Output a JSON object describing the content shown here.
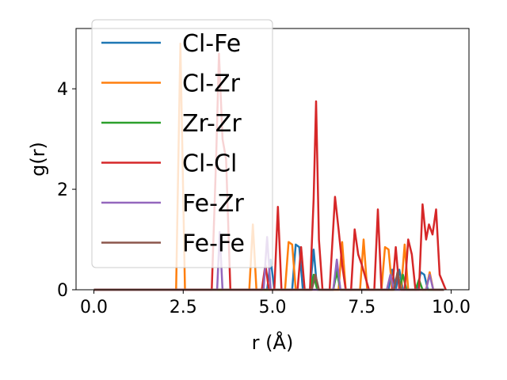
{
  "chart_data": {
    "type": "line",
    "xlabel": "r (Å)",
    "ylabel": "g(r)",
    "xlim": [
      -0.5,
      10.5
    ],
    "ylim": [
      0,
      5.2
    ],
    "xticks": [
      0.0,
      2.5,
      5.0,
      7.5,
      10.0
    ],
    "xtick_labels": [
      "0.0",
      "2.5",
      "5.0",
      "7.5",
      "10.0"
    ],
    "yticks": [
      0,
      2,
      4
    ],
    "ytick_labels": [
      "0",
      "2",
      "4"
    ],
    "grid": false,
    "legend_position": "top-left",
    "series": [
      {
        "name": "Cl-Fe",
        "color": "#1f77b4",
        "points": [
          [
            0,
            0
          ],
          [
            4.85,
            0
          ],
          [
            4.95,
            0.6
          ],
          [
            5.05,
            0
          ],
          [
            5.55,
            0
          ],
          [
            5.65,
            0.9
          ],
          [
            5.75,
            0.85
          ],
          [
            5.85,
            0
          ],
          [
            6.05,
            0
          ],
          [
            6.15,
            0.8
          ],
          [
            6.25,
            0
          ],
          [
            6.7,
            0
          ],
          [
            6.8,
            0.5
          ],
          [
            6.9,
            0
          ],
          [
            8.25,
            0
          ],
          [
            8.35,
            0.4
          ],
          [
            8.45,
            0
          ],
          [
            8.55,
            0.4
          ],
          [
            8.65,
            0
          ],
          [
            9.05,
            0
          ],
          [
            9.15,
            0.35
          ],
          [
            9.25,
            0.3
          ],
          [
            9.35,
            0
          ],
          [
            9.8,
            0
          ]
        ]
      },
      {
        "name": "Cl-Zr",
        "color": "#ff7f0e",
        "points": [
          [
            0,
            0
          ],
          [
            2.3,
            0
          ],
          [
            2.42,
            4.9
          ],
          [
            2.55,
            0
          ],
          [
            4.35,
            0
          ],
          [
            4.45,
            1.3
          ],
          [
            4.55,
            0
          ],
          [
            5.35,
            0
          ],
          [
            5.45,
            0.95
          ],
          [
            5.55,
            0.9
          ],
          [
            5.65,
            0
          ],
          [
            6.85,
            0
          ],
          [
            6.95,
            0.95
          ],
          [
            7.05,
            0
          ],
          [
            7.45,
            0
          ],
          [
            7.55,
            1.0
          ],
          [
            7.65,
            0
          ],
          [
            8.05,
            0
          ],
          [
            8.15,
            0.85
          ],
          [
            8.25,
            0.8
          ],
          [
            8.35,
            0
          ],
          [
            8.6,
            0
          ],
          [
            8.7,
            0.9
          ],
          [
            8.8,
            0
          ],
          [
            9.3,
            0
          ],
          [
            9.4,
            0.35
          ],
          [
            9.5,
            0
          ],
          [
            9.8,
            0
          ]
        ]
      },
      {
        "name": "Zr-Zr",
        "color": "#2ca02c",
        "points": [
          [
            0,
            0
          ],
          [
            6.05,
            0
          ],
          [
            6.15,
            0.3
          ],
          [
            6.25,
            0
          ],
          [
            6.7,
            0
          ],
          [
            6.8,
            0.35
          ],
          [
            6.9,
            0
          ],
          [
            8.55,
            0
          ],
          [
            8.65,
            0.3
          ],
          [
            8.75,
            0
          ],
          [
            9.0,
            0
          ],
          [
            9.1,
            0.2
          ],
          [
            9.2,
            0
          ],
          [
            9.8,
            0
          ]
        ]
      },
      {
        "name": "Cl-Cl",
        "color": "#d62728",
        "points": [
          [
            0,
            0
          ],
          [
            3.3,
            0
          ],
          [
            3.42,
            2.6
          ],
          [
            3.5,
            4.7
          ],
          [
            3.6,
            3.0
          ],
          [
            3.7,
            2.6
          ],
          [
            3.82,
            0
          ],
          [
            4.7,
            0
          ],
          [
            4.8,
            0.5
          ],
          [
            4.9,
            0
          ],
          [
            5.05,
            0
          ],
          [
            5.15,
            1.65
          ],
          [
            5.25,
            0
          ],
          [
            5.7,
            0
          ],
          [
            5.8,
            0.85
          ],
          [
            5.9,
            0
          ],
          [
            6.05,
            0
          ],
          [
            6.15,
            1.8
          ],
          [
            6.22,
            3.75
          ],
          [
            6.3,
            1.0
          ],
          [
            6.4,
            0
          ],
          [
            6.6,
            0
          ],
          [
            6.75,
            1.85
          ],
          [
            6.85,
            1.2
          ],
          [
            6.95,
            0.5
          ],
          [
            7.05,
            0
          ],
          [
            7.2,
            0
          ],
          [
            7.3,
            1.2
          ],
          [
            7.4,
            0.7
          ],
          [
            7.5,
            0.5
          ],
          [
            7.7,
            0
          ],
          [
            7.85,
            0
          ],
          [
            7.95,
            1.6
          ],
          [
            8.05,
            0
          ],
          [
            8.35,
            0
          ],
          [
            8.45,
            0.85
          ],
          [
            8.55,
            0
          ],
          [
            8.7,
            0
          ],
          [
            8.8,
            1.0
          ],
          [
            8.9,
            0.7
          ],
          [
            9.0,
            0
          ],
          [
            9.1,
            0
          ],
          [
            9.2,
            1.7
          ],
          [
            9.3,
            1.0
          ],
          [
            9.38,
            1.3
          ],
          [
            9.48,
            1.1
          ],
          [
            9.58,
            1.6
          ],
          [
            9.68,
            0.3
          ],
          [
            9.85,
            0
          ]
        ]
      },
      {
        "name": "Fe-Zr",
        "color": "#9467bd",
        "points": [
          [
            0,
            0
          ],
          [
            3.45,
            0
          ],
          [
            3.52,
            1.15
          ],
          [
            3.6,
            0
          ],
          [
            4.75,
            0
          ],
          [
            4.85,
            1.05
          ],
          [
            4.95,
            0
          ],
          [
            6.7,
            0
          ],
          [
            6.8,
            0.6
          ],
          [
            6.9,
            0
          ],
          [
            8.2,
            0
          ],
          [
            8.3,
            0.3
          ],
          [
            8.4,
            0
          ],
          [
            9.3,
            0
          ],
          [
            9.4,
            0.3
          ],
          [
            9.5,
            0
          ],
          [
            9.8,
            0
          ]
        ]
      },
      {
        "name": "Fe-Fe",
        "color": "#8c564b",
        "points": [
          [
            0,
            0
          ],
          [
            6.1,
            0
          ],
          [
            6.2,
            0.3
          ],
          [
            6.3,
            0
          ],
          [
            8.4,
            0
          ],
          [
            8.5,
            0.35
          ],
          [
            8.6,
            0
          ],
          [
            9.8,
            0
          ]
        ]
      }
    ]
  }
}
